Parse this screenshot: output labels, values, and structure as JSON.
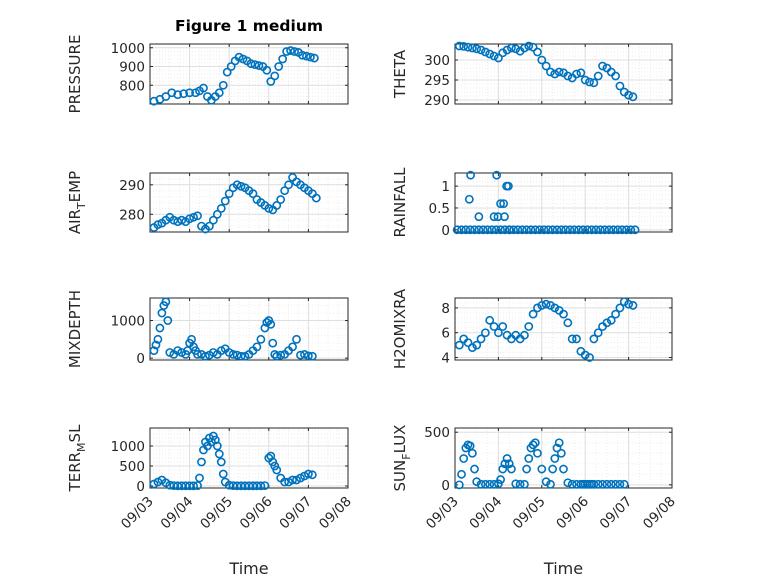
{
  "chart_data": [
    {
      "type": "scatter",
      "title": "Figure 1 medium",
      "ylabel": "PRESSURE",
      "xlim": [
        "09/03",
        "09/08"
      ],
      "ylim": [
        700,
        1020
      ],
      "yticks": [
        800,
        900,
        1000
      ],
      "xticks": [
        "09/03",
        "09/04",
        "09/05",
        "09/06",
        "09/07",
        "09/08"
      ],
      "series": [
        {
          "x": [
            3.1,
            3.25,
            3.4,
            3.55,
            3.7,
            3.85,
            4.0,
            4.15,
            4.25,
            4.35,
            4.45,
            4.55,
            4.65,
            4.75,
            4.85,
            4.95,
            5.05,
            5.15,
            5.25,
            5.35,
            5.45,
            5.55,
            5.65,
            5.75,
            5.85,
            5.95,
            6.05,
            6.15,
            6.25,
            6.35,
            6.45,
            6.55,
            6.65,
            6.75,
            6.85,
            6.95,
            7.05,
            7.15
          ],
          "y": [
            715,
            725,
            740,
            760,
            750,
            755,
            760,
            760,
            770,
            785,
            740,
            720,
            740,
            760,
            800,
            870,
            900,
            930,
            950,
            940,
            930,
            915,
            910,
            905,
            900,
            880,
            820,
            850,
            900,
            940,
            980,
            985,
            980,
            975,
            960,
            955,
            950,
            945
          ]
        }
      ],
      "grid": true
    },
    {
      "type": "scatter",
      "ylabel": "THETA",
      "xlim": [
        "09/03",
        "09/08"
      ],
      "ylim": [
        289,
        304
      ],
      "yticks": [
        290,
        295,
        300
      ],
      "xticks": [
        "09/03",
        "09/04",
        "09/05",
        "09/06",
        "09/07",
        "09/08"
      ],
      "series": [
        {
          "x": [
            3.1,
            3.2,
            3.3,
            3.4,
            3.5,
            3.6,
            3.7,
            3.8,
            3.9,
            4.0,
            4.1,
            4.2,
            4.3,
            4.4,
            4.5,
            4.6,
            4.7,
            4.8,
            4.9,
            5.0,
            5.1,
            5.2,
            5.3,
            5.4,
            5.5,
            5.6,
            5.7,
            5.8,
            5.9,
            6.0,
            6.1,
            6.2,
            6.3,
            6.4,
            6.5,
            6.6,
            6.7,
            6.8,
            6.9,
            7.0,
            7.1
          ],
          "y": [
            303.5,
            303.4,
            303.2,
            303.0,
            302.8,
            302.5,
            302.0,
            301.5,
            301.0,
            300.5,
            301.8,
            302.5,
            303.0,
            302.8,
            302.2,
            303.0,
            303.5,
            303.2,
            302.0,
            300.0,
            298.5,
            297.0,
            296.5,
            297.0,
            296.8,
            296.0,
            295.5,
            296.5,
            296.8,
            295.0,
            294.5,
            294.3,
            296.0,
            298.5,
            298.0,
            297.0,
            296.0,
            293.5,
            292.0,
            291.2,
            290.8
          ]
        }
      ],
      "grid": true
    },
    {
      "type": "scatter",
      "ylabel": "AIR_TEMP",
      "xlim": [
        "09/03",
        "09/08"
      ],
      "ylim": [
        274,
        294
      ],
      "yticks": [
        280,
        290
      ],
      "xticks": [
        "09/03",
        "09/04",
        "09/05",
        "09/06",
        "09/07",
        "09/08"
      ],
      "series": [
        {
          "x": [
            3.1,
            3.2,
            3.3,
            3.4,
            3.5,
            3.6,
            3.7,
            3.8,
            3.9,
            4.0,
            4.1,
            4.2,
            4.3,
            4.4,
            4.5,
            4.6,
            4.7,
            4.8,
            4.9,
            5.0,
            5.1,
            5.2,
            5.3,
            5.4,
            5.5,
            5.6,
            5.7,
            5.8,
            5.9,
            6.0,
            6.1,
            6.2,
            6.3,
            6.4,
            6.5,
            6.6,
            6.7,
            6.8,
            6.9,
            7.0,
            7.1,
            7.2
          ],
          "y": [
            275.5,
            276.5,
            277.0,
            278.0,
            279.0,
            278.0,
            277.5,
            278.0,
            277.5,
            278.5,
            279.0,
            279.5,
            276.0,
            275.0,
            276.0,
            278.0,
            280.0,
            282.0,
            284.5,
            287.0,
            289.0,
            290.0,
            289.5,
            289.0,
            288.0,
            287.0,
            285.0,
            284.0,
            283.0,
            282.0,
            281.5,
            283.0,
            285.0,
            288.0,
            290.0,
            292.5,
            291.0,
            290.0,
            289.0,
            288.0,
            287.0,
            285.5
          ]
        }
      ],
      "grid": true
    },
    {
      "type": "scatter",
      "ylabel": "RAINFALL",
      "xlim": [
        "09/03",
        "09/08"
      ],
      "ylim": [
        -0.05,
        1.3
      ],
      "yticks": [
        0,
        0.5,
        1
      ],
      "xticks": [
        "09/03",
        "09/04",
        "09/05",
        "09/06",
        "09/07",
        "09/08"
      ],
      "series": [
        {
          "x": [
            3.05,
            3.15,
            3.25,
            3.35,
            3.45,
            3.55,
            3.65,
            3.75,
            3.85,
            3.95,
            4.05,
            4.15,
            4.25,
            4.35,
            4.45,
            4.55,
            4.65,
            4.75,
            4.85,
            4.95,
            5.05,
            5.15,
            5.25,
            5.35,
            5.45,
            5.55,
            5.65,
            5.75,
            5.85,
            5.95,
            6.05,
            6.15,
            6.25,
            6.35,
            6.45,
            6.55,
            6.65,
            6.75,
            6.85,
            6.95,
            7.05,
            7.15,
            3.33,
            3.36,
            3.55,
            3.9,
            3.96,
            3.99,
            4.05,
            4.12,
            4.14,
            4.19,
            4.23,
            4.26
          ],
          "y": [
            0,
            0,
            0,
            0,
            0,
            0,
            0,
            0,
            0,
            0,
            0,
            0,
            0,
            0,
            0,
            0,
            0,
            0,
            0,
            0,
            0,
            0,
            0,
            0,
            0,
            0,
            0,
            0,
            0,
            0,
            0,
            0,
            0,
            0,
            0,
            0,
            0,
            0,
            0,
            0,
            0,
            0,
            0.7,
            1.25,
            0.3,
            0.3,
            1.25,
            0.3,
            0.6,
            0.6,
            0.3,
            1.0,
            1.0,
            0.0
          ]
        }
      ],
      "grid": true
    },
    {
      "type": "scatter",
      "ylabel": "MIXDEPTH",
      "xlim": [
        "09/03",
        "09/08"
      ],
      "ylim": [
        -50,
        1600
      ],
      "yticks": [
        0,
        1000
      ],
      "xticks": [
        "09/03",
        "09/04",
        "09/05",
        "09/06",
        "09/07",
        "09/08"
      ],
      "series": [
        {
          "x": [
            3.1,
            3.15,
            3.2,
            3.25,
            3.3,
            3.35,
            3.4,
            3.45,
            3.5,
            3.6,
            3.7,
            3.8,
            3.9,
            3.95,
            4.0,
            4.05,
            4.1,
            4.15,
            4.2,
            4.3,
            4.4,
            4.5,
            4.6,
            4.7,
            4.8,
            4.9,
            5.0,
            5.1,
            5.2,
            5.3,
            5.4,
            5.5,
            5.6,
            5.7,
            5.8,
            5.9,
            5.95,
            6.0,
            6.05,
            6.1,
            6.15,
            6.2,
            6.3,
            6.4,
            6.5,
            6.6,
            6.7,
            6.8,
            6.9,
            7.0,
            7.1
          ],
          "y": [
            200,
            350,
            500,
            800,
            1200,
            1400,
            1500,
            1000,
            150,
            100,
            200,
            150,
            100,
            200,
            400,
            500,
            300,
            200,
            100,
            100,
            50,
            80,
            150,
            100,
            200,
            250,
            150,
            100,
            80,
            50,
            50,
            100,
            200,
            300,
            500,
            800,
            950,
            1000,
            900,
            400,
            100,
            50,
            80,
            100,
            200,
            300,
            500,
            80,
            100,
            60,
            50
          ]
        }
      ],
      "grid": true
    },
    {
      "type": "scatter",
      "ylabel": "H2OMIXRA",
      "xlim": [
        "09/03",
        "09/08"
      ],
      "ylim": [
        3.8,
        8.8
      ],
      "yticks": [
        4,
        6,
        8
      ],
      "xticks": [
        "09/03",
        "09/04",
        "09/05",
        "09/06",
        "09/07",
        "09/08"
      ],
      "series": [
        {
          "x": [
            3.1,
            3.2,
            3.3,
            3.4,
            3.5,
            3.6,
            3.7,
            3.8,
            3.9,
            4.0,
            4.1,
            4.2,
            4.3,
            4.4,
            4.5,
            4.6,
            4.7,
            4.8,
            4.9,
            5.0,
            5.1,
            5.2,
            5.3,
            5.4,
            5.5,
            5.6,
            5.7,
            5.8,
            5.9,
            6.0,
            6.1,
            6.2,
            6.3,
            6.4,
            6.5,
            6.6,
            6.7,
            6.8,
            6.9,
            7.0,
            7.1
          ],
          "y": [
            5.0,
            5.5,
            5.2,
            4.8,
            5.0,
            5.5,
            6.0,
            7.0,
            6.5,
            6.0,
            6.5,
            5.8,
            5.5,
            5.8,
            5.5,
            5.8,
            6.5,
            7.5,
            8.0,
            8.2,
            8.3,
            8.2,
            8.0,
            7.8,
            7.5,
            6.8,
            5.5,
            5.5,
            4.5,
            4.2,
            4.0,
            5.5,
            6.0,
            6.5,
            6.8,
            7.0,
            7.5,
            8.0,
            8.5,
            8.3,
            8.2
          ]
        }
      ],
      "grid": true
    },
    {
      "type": "scatter",
      "ylabel": "TERR_MSL",
      "xlim": [
        "09/03",
        "09/08"
      ],
      "ylim": [
        -50,
        1450
      ],
      "yticks": [
        0,
        500,
        1000
      ],
      "xticks": [
        "09/03",
        "09/04",
        "09/05",
        "09/06",
        "09/07",
        "09/08"
      ],
      "series": [
        {
          "x": [
            3.1,
            3.2,
            3.3,
            3.4,
            3.5,
            3.6,
            3.7,
            3.8,
            3.9,
            4.0,
            4.1,
            4.2,
            4.25,
            4.3,
            4.35,
            4.4,
            4.45,
            4.5,
            4.55,
            4.6,
            4.65,
            4.7,
            4.75,
            4.8,
            4.85,
            4.9,
            5.0,
            5.1,
            5.2,
            5.3,
            5.4,
            5.5,
            5.6,
            5.7,
            5.8,
            5.9,
            6.0,
            6.05,
            6.1,
            6.15,
            6.2,
            6.3,
            6.4,
            6.5,
            6.6,
            6.7,
            6.8,
            6.9,
            7.0,
            7.1
          ],
          "y": [
            50,
            100,
            150,
            80,
            20,
            10,
            5,
            5,
            5,
            5,
            5,
            10,
            200,
            600,
            900,
            1100,
            1000,
            1200,
            1100,
            1250,
            1150,
            1000,
            800,
            600,
            300,
            100,
            20,
            10,
            5,
            5,
            5,
            5,
            5,
            5,
            5,
            10,
            700,
            750,
            600,
            500,
            400,
            200,
            100,
            100,
            150,
            150,
            200,
            250,
            300,
            280
          ]
        }
      ],
      "grid": true
    },
    {
      "type": "scatter",
      "ylabel": "SUN_FLUX",
      "xlim": [
        "09/03",
        "09/08"
      ],
      "ylim": [
        -30,
        540
      ],
      "yticks": [
        0,
        500
      ],
      "xticks": [
        "09/03",
        "09/04",
        "09/05",
        "09/06",
        "09/07",
        "09/08"
      ],
      "series": [
        {
          "x": [
            3.1,
            3.15,
            3.2,
            3.25,
            3.3,
            3.35,
            3.4,
            3.45,
            3.5,
            3.6,
            3.7,
            3.8,
            3.9,
            4.0,
            4.05,
            4.1,
            4.15,
            4.2,
            4.25,
            4.3,
            4.4,
            4.5,
            4.6,
            4.65,
            4.7,
            4.75,
            4.8,
            4.85,
            4.9,
            5.0,
            5.1,
            5.2,
            5.25,
            5.3,
            5.35,
            5.4,
            5.45,
            5.5,
            5.6,
            5.7,
            5.8,
            5.9,
            5.95,
            6.0,
            6.05,
            6.1,
            6.15,
            6.2,
            6.3,
            6.4,
            6.5,
            6.6,
            6.7,
            6.8,
            6.9
          ],
          "y": [
            0,
            100,
            250,
            350,
            380,
            370,
            300,
            150,
            30,
            5,
            5,
            5,
            5,
            10,
            50,
            150,
            200,
            250,
            200,
            150,
            10,
            5,
            5,
            150,
            250,
            350,
            380,
            400,
            300,
            150,
            30,
            5,
            150,
            250,
            350,
            400,
            300,
            150,
            20,
            5,
            5,
            5,
            5,
            5,
            5,
            5,
            5,
            5,
            5,
            5,
            5,
            5,
            5,
            5,
            5
          ]
        }
      ],
      "grid": true
    }
  ],
  "xlabel": "Time",
  "colors": {
    "marker": "#0072BD",
    "grid": "#dfdfdf",
    "axis": "#262626"
  }
}
